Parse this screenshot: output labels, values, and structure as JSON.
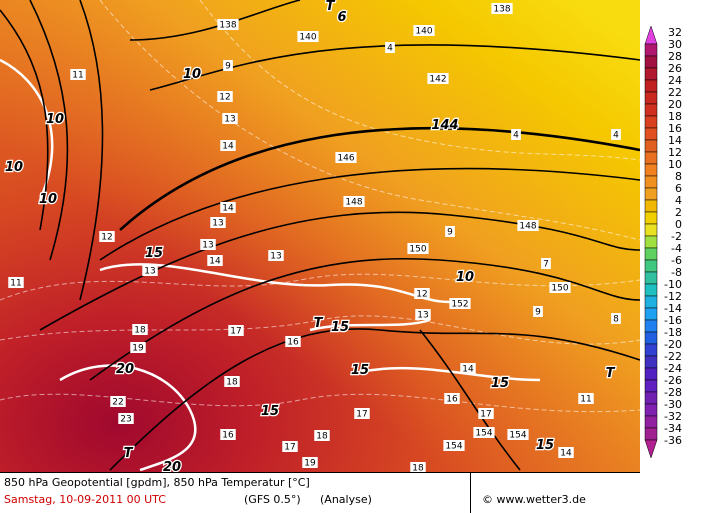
{
  "map": {
    "labels": [
      "138",
      "140",
      "138",
      "140",
      "142",
      "144",
      "146",
      "148",
      "150",
      "152",
      "154",
      "150",
      "148",
      "10",
      "10",
      "10",
      "10",
      "10",
      "15",
      "15",
      "15",
      "15",
      "15",
      "15",
      "20",
      "20",
      "11",
      "12",
      "13",
      "14",
      "14",
      "13",
      "13",
      "14",
      "13",
      "12",
      "11",
      "13",
      "18",
      "19",
      "17",
      "16",
      "18",
      "22",
      "23",
      "16",
      "17",
      "18",
      "19",
      "18",
      "17",
      "16",
      "17",
      "14",
      "13",
      "12",
      "9",
      "7",
      "9",
      "8",
      "4",
      "4",
      "4",
      "9",
      "6",
      "T",
      "T",
      "T",
      "T",
      "11",
      "154",
      "154",
      "14"
    ]
  },
  "colorbar": {
    "levels": [
      32,
      30,
      28,
      26,
      24,
      22,
      20,
      18,
      16,
      14,
      12,
      10,
      8,
      6,
      4,
      2,
      0,
      -2,
      -4,
      -6,
      -8,
      -10,
      -12,
      -14,
      -16,
      -18,
      -20,
      -22,
      -24,
      -26,
      -28,
      -30,
      -32,
      -34,
      -36
    ],
    "colors": [
      "#e040e0",
      "#b01870",
      "#a01040",
      "#b01830",
      "#c02020",
      "#c82820",
      "#d03020",
      "#d84020",
      "#e05020",
      "#e06020",
      "#e87020",
      "#f08020",
      "#f09020",
      "#f0a020",
      "#f0b800",
      "#f0d000",
      "#e8e020",
      "#a0e040",
      "#60d060",
      "#40c880",
      "#30c0a0",
      "#20c0c0",
      "#20b0e0",
      "#20a0f0",
      "#2080f0",
      "#2060e0",
      "#3040d0",
      "#4030c0",
      "#5020c0",
      "#6020c0",
      "#7020b0",
      "#8020b0",
      "#9020a0",
      "#a02090",
      "#b02090"
    ]
  },
  "footer": {
    "title": "850 hPa Geopotential [gpdm], 850 hPa Temperatur [°C]",
    "date": "Samstag, 10-09-2011   00 UTC",
    "model": "(GFS 0.5°)",
    "run": "(Analyse)",
    "credit": "© www.wetter3.de"
  }
}
